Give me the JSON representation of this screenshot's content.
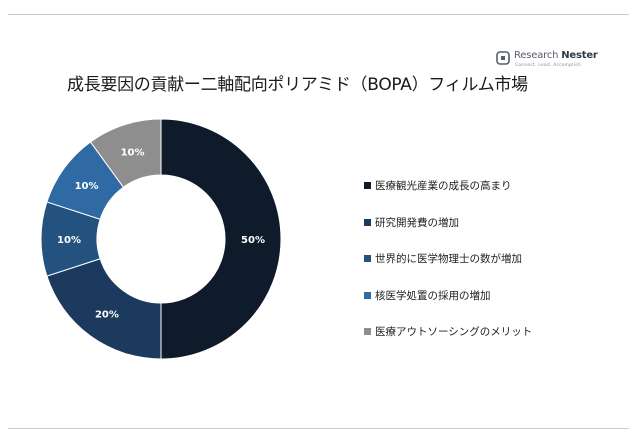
{
  "brand": {
    "name_part1": "Research",
    "name_part2": "Nester",
    "tagline": "Connect. Lead. Accomplish"
  },
  "chart_data": {
    "type": "donut",
    "title": "成長要因の貢献ー二軸配向ポリアミド（BOPA）フィルム市場",
    "unit": "%",
    "start_angle_deg": 0,
    "direction": "clockwise",
    "slices": [
      {
        "label": "医療観光産業の成長の高まり",
        "value": 50,
        "display": "50%",
        "color": "#0f1b2a"
      },
      {
        "label": "研究開発費の増加",
        "value": 20,
        "display": "20%",
        "color": "#1c3a5e"
      },
      {
        "label": "世界的に医学物理士の数が増加",
        "value": 10,
        "display": "10%",
        "color": "#24527f"
      },
      {
        "label": "核医学処置の採用の増加",
        "value": 10,
        "display": "10%",
        "color": "#2f6aa5"
      },
      {
        "label": "医療アウトソーシングのメリット",
        "value": 10,
        "display": "10%",
        "color": "#8e8e8e"
      }
    ],
    "legend_position": "right"
  }
}
